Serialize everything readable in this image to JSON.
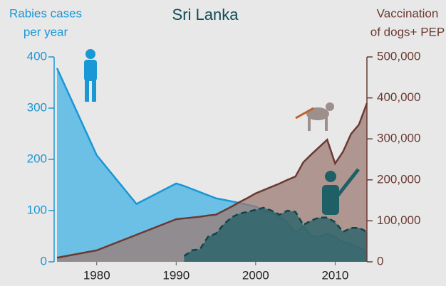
{
  "chart_data": {
    "type": "area",
    "title": "Sri Lanka",
    "y_label": [
      "Rabies cases",
      "per year"
    ],
    "y2_label": [
      "Vaccination",
      "of dogs+ PEP"
    ],
    "x": [
      1975,
      1980,
      1985,
      1990,
      1991,
      1992,
      1993,
      1994,
      1995,
      1996,
      1997,
      1998,
      1999,
      2000,
      2001,
      2002,
      2003,
      2004,
      2005,
      2006,
      2007,
      2008,
      2009,
      2010,
      2011,
      2012,
      2013,
      2014
    ],
    "xlim": [
      1975,
      2014
    ],
    "xticks": [
      1980,
      1990,
      2000,
      2010
    ],
    "ylim": [
      0,
      400
    ],
    "yticks": [
      0,
      100,
      200,
      300,
      400
    ],
    "y2lim": [
      0,
      500000
    ],
    "y2ticks": [
      0,
      {
        "value": 100000,
        "label": "100,000"
      },
      {
        "value": 200000,
        "label": "200,000"
      },
      {
        "value": 300000,
        "label": "300,000"
      },
      {
        "value": 400000,
        "label": "400,000"
      },
      {
        "value": 500000,
        "label": "500,000"
      }
    ],
    "series": [
      {
        "color": "#1a97d5",
        "fill": "#6cbfe5",
        "values": [
          378,
          208,
          113,
          153,
          148,
          142,
          136,
          130,
          124,
          121,
          118,
          115,
          111,
          108,
          100,
          95,
          88,
          76,
          57,
          69,
          51,
          48,
          55,
          48,
          38,
          35,
          28,
          20
        ]
      },
      {
        "axis": "y2",
        "color": "#6b3a32",
        "fill": "#9c7b73",
        "values": [
          10000,
          28000,
          66000,
          104000,
          106000,
          108000,
          110000,
          113000,
          115000,
          125000,
          135000,
          146000,
          156000,
          167000,
          175000,
          183000,
          191000,
          200000,
          208000,
          243000,
          262000,
          280000,
          298000,
          240000,
          269000,
          312000,
          335000,
          387000
        ]
      },
      {
        "axis": "y2",
        "color": "#12434a",
        "fill": "#1f5f66",
        "dashed": true,
        "values": [
          null,
          null,
          null,
          null,
          14000,
          28000,
          31000,
          61000,
          69000,
          92000,
          109000,
          118000,
          122000,
          127000,
          132000,
          125000,
          115000,
          125000,
          122000,
          90000,
          101000,
          108000,
          108000,
          97000,
          73000,
          83000,
          83000,
          73000
        ]
      }
    ]
  }
}
